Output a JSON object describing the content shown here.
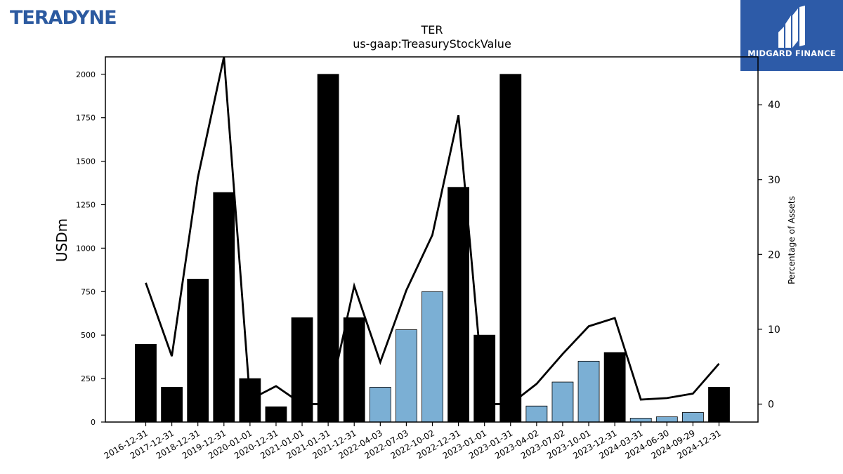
{
  "brand": {
    "left_logo_text": "TERADYNE",
    "right_logo_text": "MIDGARD FINANCE",
    "right_logo_color": "#2d5ba8",
    "left_logo_color": "#2c5aa0"
  },
  "chart_data": {
    "type": "bar",
    "title": "TER",
    "subtitle": "us-gaap:TreasuryStockValue",
    "ylabel": "USDm",
    "y2label": "Percentage of Assets",
    "ylim": [
      0,
      2100
    ],
    "y2lim": [
      -2.4,
      46.4
    ],
    "yticks": [
      0,
      250,
      500,
      750,
      1000,
      1250,
      1500,
      1750,
      2000
    ],
    "y2ticks": [
      0,
      10,
      20,
      30,
      40
    ],
    "grid": false,
    "categories": [
      "2016-12-31",
      "2017-12-31",
      "2018-12-31",
      "2019-12-31",
      "2020-01-01",
      "2020-12-31",
      "2021-01-01",
      "2021-01-31",
      "2021-12-31",
      "2022-04-03",
      "2022-07-03",
      "2022-10-02",
      "2022-12-31",
      "2023-01-01",
      "2023-01-31",
      "2023-04-02",
      "2023-07-02",
      "2023-10-01",
      "2023-12-31",
      "2024-03-31",
      "2024-06-30",
      "2024-09-29",
      "2024-12-31"
    ],
    "series": [
      {
        "type": "bar",
        "values": [
          447,
          200,
          822,
          1320,
          250,
          88,
          600,
          2000,
          600,
          200,
          531,
          750,
          1350,
          500,
          2000,
          92,
          230,
          350,
          400,
          22,
          30,
          55,
          200
        ],
        "colors": [
          "#000000",
          "#000000",
          "#000000",
          "#000000",
          "#000000",
          "#000000",
          "#000000",
          "#000000",
          "#000000",
          "#7bafd4",
          "#7bafd4",
          "#7bafd4",
          "#000000",
          "#000000",
          "#000000",
          "#7bafd4",
          "#7bafd4",
          "#7bafd4",
          "#000000",
          "#7bafd4",
          "#7bafd4",
          "#7bafd4",
          "#000000"
        ]
      },
      {
        "type": "line",
        "axis": "right",
        "color": "#000000",
        "values": [
          16.2,
          6.4,
          30.3,
          46.4,
          0.6,
          2.4,
          0.0,
          0.0,
          15.8,
          5.6,
          15.2,
          22.6,
          38.6,
          0.0,
          0.0,
          2.7,
          6.7,
          10.4,
          11.5,
          0.6,
          0.8,
          1.4,
          5.4
        ]
      }
    ]
  }
}
